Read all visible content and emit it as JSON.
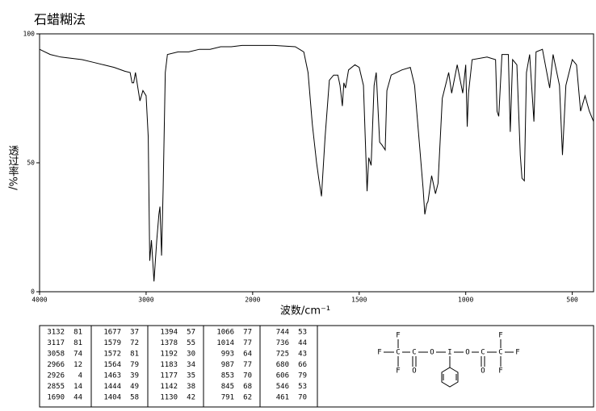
{
  "chart_data": {
    "type": "line",
    "title": "石蜡糊法",
    "x_label": "波数/cm⁻¹",
    "y_label": "透过率%/",
    "xlim": [
      4000,
      400
    ],
    "xticks": [
      4000,
      3000,
      2000,
      1500,
      1000,
      500
    ],
    "ylim": [
      0,
      100
    ],
    "yticks": [
      0,
      50,
      100
    ],
    "color": "#000000",
    "x": [
      4000,
      3900,
      3800,
      3700,
      3600,
      3500,
      3400,
      3300,
      3200,
      3150,
      3132,
      3117,
      3100,
      3058,
      3030,
      3000,
      2980,
      2966,
      2950,
      2926,
      2900,
      2880,
      2870,
      2855,
      2840,
      2820,
      2800,
      2700,
      2600,
      2500,
      2400,
      2300,
      2200,
      2100,
      2000,
      1900,
      1800,
      1760,
      1740,
      1720,
      1700,
      1690,
      1677,
      1660,
      1640,
      1620,
      1600,
      1590,
      1579,
      1572,
      1564,
      1550,
      1520,
      1500,
      1480,
      1463,
      1455,
      1444,
      1430,
      1420,
      1404,
      1394,
      1378,
      1370,
      1350,
      1300,
      1260,
      1240,
      1220,
      1200,
      1192,
      1183,
      1177,
      1160,
      1142,
      1130,
      1110,
      1080,
      1066,
      1040,
      1014,
      1000,
      993,
      987,
      970,
      900,
      860,
      853,
      845,
      830,
      800,
      791,
      780,
      760,
      744,
      736,
      725,
      715,
      700,
      680,
      670,
      640,
      606,
      590,
      560,
      546,
      530,
      500,
      480,
      461,
      440,
      420,
      400
    ],
    "values": [
      94,
      92,
      91,
      90.5,
      90,
      89,
      88,
      87,
      85.5,
      85,
      81,
      81,
      85,
      74,
      78,
      76,
      60,
      12,
      20,
      4,
      20,
      30,
      33,
      14,
      40,
      85,
      92,
      93,
      93,
      94,
      94,
      95,
      95,
      95.5,
      95.5,
      95.5,
      95,
      93,
      85,
      65,
      50,
      44,
      37,
      60,
      82,
      84,
      84,
      80,
      72,
      81,
      79,
      86,
      88,
      87,
      80,
      39,
      52,
      49,
      80,
      85,
      58,
      57,
      55,
      78,
      84,
      86,
      87,
      80,
      60,
      40,
      30,
      34,
      35,
      45,
      38,
      42,
      75,
      85,
      77,
      88,
      77,
      88,
      64,
      77,
      90,
      91,
      90,
      70,
      68,
      92,
      92,
      62,
      90,
      88,
      53,
      44,
      43,
      85,
      92,
      66,
      93,
      94,
      79,
      92,
      80,
      53,
      80,
      90,
      88,
      70,
      76,
      70,
      66
    ]
  },
  "peak_table": {
    "rows": [
      [
        "3132",
        "81",
        "1677",
        "37",
        "1394",
        "57",
        "1066",
        "77",
        "744",
        "53"
      ],
      [
        "3117",
        "81",
        "1579",
        "72",
        "1378",
        "55",
        "1014",
        "77",
        "736",
        "44"
      ],
      [
        "3058",
        "74",
        "1572",
        "81",
        "1192",
        "30",
        "993",
        "64",
        "725",
        "43"
      ],
      [
        "2966",
        "12",
        "1564",
        "79",
        "1183",
        "34",
        "987",
        "77",
        "680",
        "66"
      ],
      [
        "2926",
        "4",
        "1463",
        "39",
        "1177",
        "35",
        "853",
        "70",
        "606",
        "79"
      ],
      [
        "2855",
        "14",
        "1444",
        "49",
        "1142",
        "38",
        "845",
        "68",
        "546",
        "53"
      ],
      [
        "1690",
        "44",
        "1404",
        "58",
        "1130",
        "42",
        "791",
        "62",
        "461",
        "70"
      ]
    ]
  },
  "structure": {
    "atoms": [
      "F",
      "F",
      "C",
      "F",
      "C",
      "O",
      "O",
      "I",
      "O",
      "C",
      "O",
      "C",
      "F",
      "F",
      "F"
    ]
  }
}
